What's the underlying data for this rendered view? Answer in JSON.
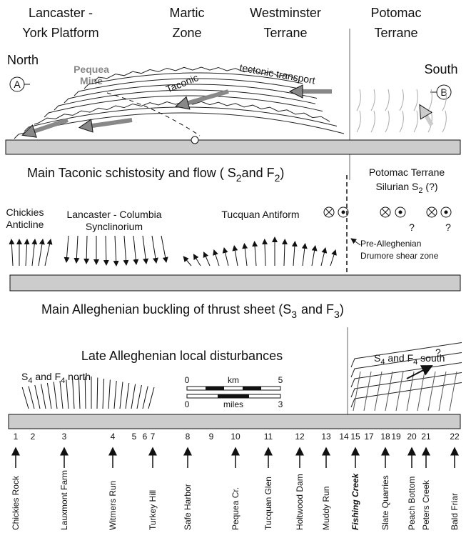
{
  "headers": [
    [
      "Lancaster -",
      "York Platform"
    ],
    [
      "Martic",
      "Zone"
    ],
    [
      "Westminster",
      "Terrane"
    ],
    [
      "Potomac",
      "Terrane"
    ]
  ],
  "panel1": {
    "north": "North",
    "a": "A",
    "south": "South",
    "b": "B",
    "pequea_mine": [
      "Pequea",
      "Mine"
    ],
    "taconic": "Taconic",
    "transport": "tectonic transport",
    "caption": [
      "Main Taconic   schistosity and flow  ( S",
      "2",
      "and F",
      "2",
      ")"
    ],
    "potomac_note": [
      "Potomac Terrane",
      "Silurian S",
      "2",
      " (?)"
    ]
  },
  "panel2": {
    "chickies": [
      "Chickies",
      "Anticline"
    ],
    "synclinorium": [
      "Lancaster - Columbia",
      "Synclinorium"
    ],
    "antiform": "Tucquan  Antiform",
    "shear_zone": [
      "Pre-Alleghenian",
      "Drumore shear zone"
    ],
    "query_marks": [
      "?",
      "?"
    ],
    "caption": [
      "Main  Alleghenian buckling of thrust sheet  (S",
      "3",
      "and   F",
      "3",
      ")"
    ]
  },
  "panel3": {
    "title": "Late Alleghenian local disturbances",
    "north": [
      "S",
      "4",
      " and  F",
      "4",
      " north"
    ],
    "south": [
      "S",
      "4",
      " and F",
      "4",
      " south"
    ],
    "query": "?",
    "scale": {
      "km": [
        "0",
        "km",
        "5"
      ],
      "miles": [
        "0",
        "miles",
        "3"
      ]
    }
  },
  "locations": [
    {
      "number": "1",
      "name": "Chickies Rock"
    },
    {
      "number": "2"
    },
    {
      "number": "3",
      "name": "Lauxmont Farm"
    },
    {
      "number": "4",
      "name": "Witmers Run"
    },
    {
      "number": "5"
    },
    {
      "number": "6"
    },
    {
      "number": "7",
      "name": "Turkey Hill"
    },
    {
      "number": "8",
      "name": "Safe Harbor"
    },
    {
      "number": "9"
    },
    {
      "number": "10",
      "name": "Pequea Cr."
    },
    {
      "number": "11",
      "name": "Tucquan Glen"
    },
    {
      "number": "12",
      "name": "Holtwood Dam"
    },
    {
      "number": "13",
      "name": "Muddy Run"
    },
    {
      "number": "14"
    },
    {
      "number": "15",
      "name": "Fishing Creek"
    },
    {
      "number": "17"
    },
    {
      "number": "18",
      "name": "Slate Quarries"
    },
    {
      "number": "19"
    },
    {
      "number": "20",
      "name": "Peach Bottom"
    },
    {
      "number": "21",
      "name": "Peters Creek"
    },
    {
      "number": "22",
      "name": "Bald Friar"
    }
  ]
}
